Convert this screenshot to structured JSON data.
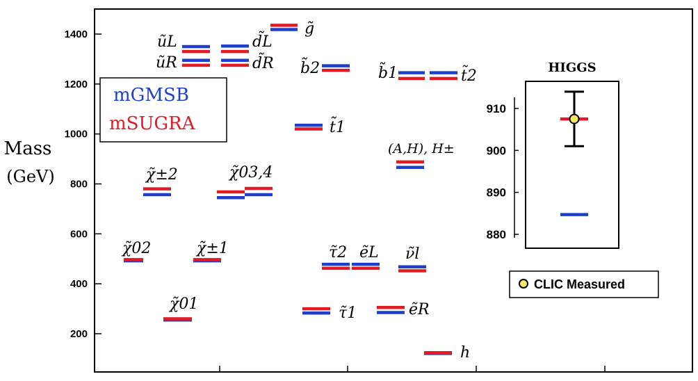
{
  "chart_data": [
    {
      "type": "scatter",
      "title": "",
      "ylabel": "Mass (GeV)",
      "ylabel_lines": [
        "Mass",
        "(GeV)"
      ],
      "ylim": [
        100,
        1470
      ],
      "yticks": [
        200,
        400,
        600,
        800,
        1000,
        1200,
        1400
      ],
      "grid": false,
      "legend": {
        "placement": "top-left",
        "entries": [
          {
            "name": "mGMSB",
            "color": "#1f3fc8"
          },
          {
            "name": "mSUGRA",
            "color": "#e01b24"
          }
        ]
      },
      "series": [
        {
          "name": "mGMSB",
          "color": "#1f3fc8"
        },
        {
          "name": "mSUGRA",
          "color": "#e01b24"
        }
      ],
      "particles": [
        {
          "label": "g̃",
          "mGMSB": 1418,
          "mSUGRA": 1435
        },
        {
          "label": "ũ_L",
          "mGMSB": 1350,
          "mSUGRA": 1330
        },
        {
          "label": "ũ_R",
          "mGMSB": 1295,
          "mSUGRA": 1275
        },
        {
          "label": "d̃_L",
          "mGMSB": 1352,
          "mSUGRA": 1330
        },
        {
          "label": "d̃_R",
          "mGMSB": 1295,
          "mSUGRA": 1275
        },
        {
          "label": "b̃_2",
          "mGMSB": 1273,
          "mSUGRA": 1255
        },
        {
          "label": "b̃_1",
          "mGMSB": 1245,
          "mSUGRA": 1222
        },
        {
          "label": "t̃_2",
          "mGMSB": 1245,
          "mSUGRA": 1222
        },
        {
          "label": "t̃_1",
          "mGMSB": 1035,
          "mSUGRA": 1020
        },
        {
          "label": "(A,H), H±",
          "mGMSB": 866,
          "mSUGRA": 888
        },
        {
          "label": "χ̃±_2",
          "mGMSB": 757,
          "mSUGRA": 780
        },
        {
          "label": "χ̃0_3",
          "mGMSB": 745,
          "mSUGRA": 768
        },
        {
          "label": "χ̃0_4",
          "mGMSB": 757,
          "mSUGRA": 782
        },
        {
          "label": "χ̃0_2",
          "mGMSB": 492,
          "mSUGRA": 497
        },
        {
          "label": "χ̃±_1",
          "mGMSB": 492,
          "mSUGRA": 497
        },
        {
          "label": "τ̃_2",
          "mGMSB": 478,
          "mSUGRA": 462
        },
        {
          "label": "ẽ_L",
          "mGMSB": 478,
          "mSUGRA": 462
        },
        {
          "label": "ν̃_l",
          "mGMSB": 468,
          "mSUGRA": 452
        },
        {
          "label": "χ̃0_1",
          "mGMSB": 255,
          "mSUGRA": 260
        },
        {
          "label": "τ̃_1",
          "mGMSB": 283,
          "mSUGRA": 300
        },
        {
          "label": "ẽ_R",
          "mGMSB": 285,
          "mSUGRA": 305
        },
        {
          "label": "h",
          "mGMSB": 121,
          "mSUGRA": 124
        }
      ],
      "text_labels": {
        "gluino": "g̃",
        "uL": "ũL",
        "uR": "ũR",
        "dL": "d̃L",
        "dR": "d̃R",
        "b2": "b̃2",
        "b1": "b̃1",
        "t2": "t̃2",
        "t1": "t̃1",
        "AH": "(A,H), H±",
        "chi2pm": "χ̃±2",
        "chi34": "χ̃03,4",
        "chi20": "χ̃02",
        "chi1pm": "χ̃±1",
        "tau2": "τ̃2",
        "eL": "ẽL",
        "nul": "ν̃l",
        "chi10": "χ̃01",
        "tau1": "τ̃1",
        "eR": "ẽR",
        "h": "h"
      }
    },
    {
      "type": "scatter",
      "title": "HIGGS",
      "ylim": [
        876,
        916
      ],
      "yticks": [
        880,
        890,
        900,
        910
      ],
      "mSUGRA": 907.5,
      "mGMSB": 884.7,
      "measured": {
        "value": 907.5,
        "error": 6.5
      },
      "legend": {
        "placement": "bottom",
        "entries": [
          {
            "name": "CLIC Measured",
            "color": "#f6eb60"
          }
        ]
      }
    }
  ]
}
